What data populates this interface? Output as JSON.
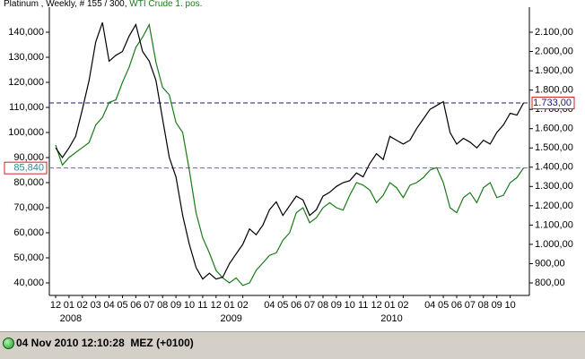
{
  "chart_data": {
    "type": "line",
    "title": "Platinum , Weekly, # 155 / 300,",
    "title_2": "WTI Crude 1. pos.",
    "categories": [
      "12",
      null,
      "01",
      null,
      "02",
      null,
      "03",
      null,
      "04",
      null,
      "05",
      null,
      "06",
      null,
      "07",
      null,
      "08",
      null,
      "09",
      null,
      "10",
      null,
      "11",
      null,
      "12",
      null,
      "01",
      null,
      "02",
      null,
      null,
      null,
      "04",
      null,
      "05",
      null,
      "06",
      null,
      "07",
      null,
      "08",
      null,
      "09",
      null,
      "10",
      null,
      "11",
      null,
      "12",
      null,
      "01",
      null,
      "02",
      null,
      null,
      null,
      "04",
      null,
      "05",
      null,
      "06",
      null,
      "07",
      null,
      "08",
      null,
      "09",
      null,
      "10",
      null,
      null
    ],
    "years": [
      "2008",
      "2009",
      "2010"
    ],
    "series": [
      {
        "color": "#000000",
        "axis": "y2",
        "values": [
          1500,
          1450,
          1500,
          1560,
          1700,
          1850,
          2050,
          2150,
          1950,
          1980,
          2000,
          2080,
          2140,
          2000,
          1950,
          1850,
          1650,
          1450,
          1350,
          1150,
          1000,
          880,
          820,
          850,
          820,
          830,
          900,
          950,
          1000,
          1080,
          1050,
          1100,
          1180,
          1220,
          1150,
          1200,
          1250,
          1230,
          1150,
          1180,
          1250,
          1270,
          1300,
          1320,
          1330,
          1370,
          1350,
          1420,
          1470,
          1440,
          1560,
          1540,
          1520,
          1540,
          1600,
          1650,
          1700,
          1720,
          1740,
          1580,
          1520,
          1550,
          1530,
          1500,
          1540,
          1520,
          1580,
          1620,
          1680,
          1670,
          1733
        ]
      },
      {
        "color": "#1a7a1a",
        "axis": "y",
        "values": [
          95000,
          87000,
          90000,
          92000,
          94000,
          96000,
          103000,
          106000,
          112000,
          113000,
          120000,
          126000,
          134000,
          138000,
          143000,
          128000,
          118000,
          115000,
          104000,
          100000,
          85000,
          68000,
          58000,
          52000,
          45000,
          42000,
          40000,
          42000,
          39000,
          40000,
          45000,
          48000,
          51000,
          52000,
          57000,
          60000,
          68000,
          70000,
          64000,
          66000,
          70000,
          72000,
          70000,
          69000,
          75000,
          80000,
          79000,
          77000,
          72000,
          75000,
          80000,
          78000,
          74000,
          79000,
          80000,
          82000,
          85000,
          86000,
          80000,
          70000,
          68000,
          74000,
          76000,
          72000,
          78000,
          80000,
          74000,
          75000,
          80000,
          82000,
          85840
        ]
      }
    ],
    "ylim": [
      35000,
      150000
    ],
    "yticks": [
      {
        "value": 40000,
        "label": "40,000"
      },
      {
        "value": 50000,
        "label": "50,000"
      },
      {
        "value": 60000,
        "label": "60,000"
      },
      {
        "value": 70000,
        "label": "70,000"
      },
      {
        "value": 80000,
        "label": "80,000"
      },
      {
        "value": 90000,
        "label": "90,000"
      },
      {
        "value": 100000,
        "label": "100,000"
      },
      {
        "value": 110000,
        "label": "110,000"
      },
      {
        "value": 120000,
        "label": "120,000"
      },
      {
        "value": 130000,
        "label": "130,000"
      },
      {
        "value": 140000,
        "label": "140,000"
      }
    ],
    "y2lim": [
      735,
      2230
    ],
    "y2ticks": [
      {
        "value": 800,
        "label": "800,00"
      },
      {
        "value": 900,
        "label": "900,00"
      },
      {
        "value": 1000,
        "label": "1.000,00"
      },
      {
        "value": 1100,
        "label": "1.100,00"
      },
      {
        "value": 1200,
        "label": "1.200,00"
      },
      {
        "value": 1300,
        "label": "1.300,00"
      },
      {
        "value": 1400,
        "label": "1.400,00"
      },
      {
        "value": 1500,
        "label": "1.500,00"
      },
      {
        "value": 1600,
        "label": "1.600,00"
      },
      {
        "value": 1700,
        "label": "1.700,00"
      },
      {
        "value": 1800,
        "label": "1.800,00"
      },
      {
        "value": 1900,
        "label": "1.900,00"
      },
      {
        "value": 2000,
        "label": "2.000,00"
      },
      {
        "value": 2100,
        "label": "2.100,00"
      }
    ],
    "markers": [
      {
        "axis": "y",
        "value": 85840,
        "label": "85,840",
        "color": "#2a8a9a"
      },
      {
        "axis": "y2",
        "value": 1733,
        "label": "1.733,00",
        "color": "#1a1a7a"
      }
    ]
  },
  "status": {
    "time": "04 Nov 2010 12:10:28  MEZ (+0100)"
  }
}
